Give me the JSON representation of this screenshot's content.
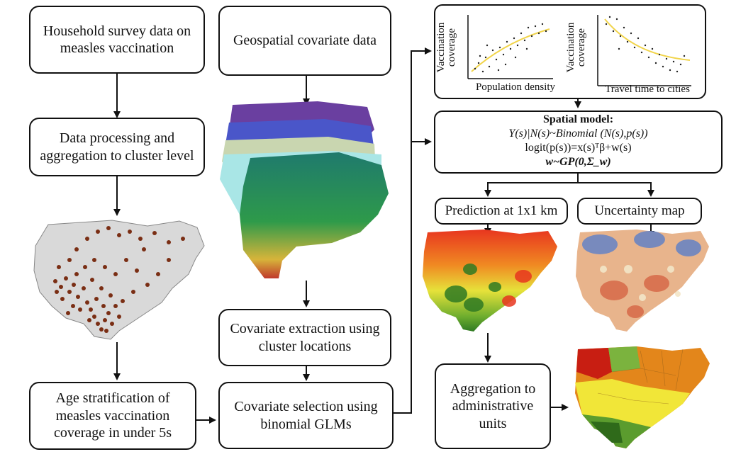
{
  "boxes": {
    "household": "Household survey data on measles vaccination",
    "processing": "Data processing and aggregation to cluster level",
    "age": "Age stratification of measles vaccination coverage in under 5s",
    "geospatial": "Geospatial covariate data",
    "extraction": "Covariate extraction using cluster locations",
    "selection": "Covariate selection using binomial GLMs",
    "prediction": "Prediction at 1x1 km",
    "uncertainty": "Uncertainty map",
    "aggregation": "Aggregation to administrative units"
  },
  "scatter1": {
    "ylabel": "Vaccination coverage",
    "xlabel": "Population density"
  },
  "scatter2": {
    "ylabel": "Vaccination coverage",
    "xlabel": "Travel time to cities"
  },
  "model": {
    "title": "Spatial model:",
    "line1": "Y(s)|N(s)~Binomial (N(s),p(s))",
    "line2": "logit(p(s))=x(s)ᵀβ+w(s)",
    "line3": "w~GP(0,Σ_w)"
  }
}
